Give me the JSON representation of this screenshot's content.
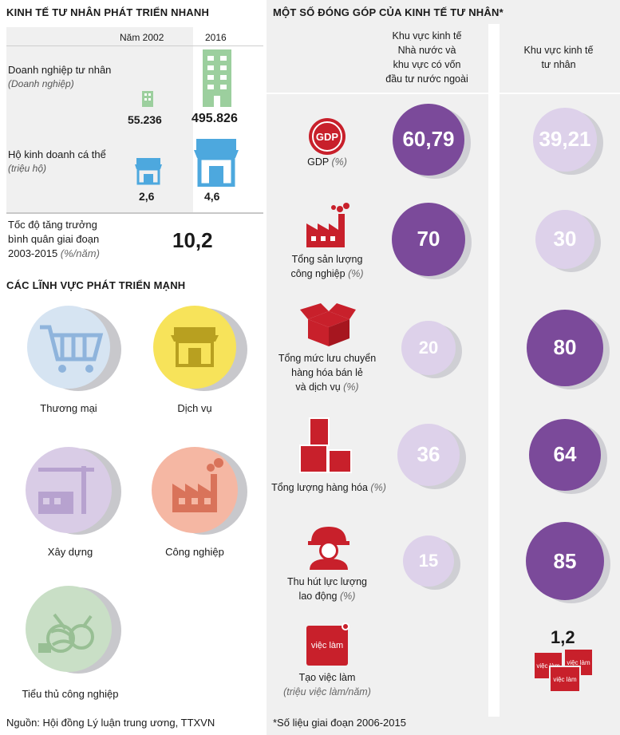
{
  "left": {
    "title": "KINH TẾ TƯ NHÂN PHÁT TRIỂN NHANH",
    "col_year1": "Năm 2002",
    "col_year2": "2016",
    "row1": {
      "label": "Doanh nghiệp tư nhân",
      "unit": "(Doanh nghiệp)",
      "v2002": "55.236",
      "v2016": "495.826"
    },
    "row2": {
      "label": "Hộ kinh doanh cá thể",
      "unit": "(triệu hộ)",
      "v2002": "2,6",
      "v2016": "4,6"
    },
    "growth": {
      "line1": "Tốc độ tăng trưởng",
      "line2": "bình quân giai đoạn",
      "line3": "2003-2015",
      "unit": "(%/năm)",
      "value": "10,2"
    },
    "sectors_title": "CÁC LĨNH VỰC PHÁT TRIỂN MẠNH",
    "sectors": [
      {
        "label": "Thương mại",
        "icon": "cart-icon",
        "color": "#d6e4f2"
      },
      {
        "label": "Dịch vụ",
        "icon": "storefront-icon",
        "color": "#f7e35a"
      },
      {
        "label": "Xây dựng",
        "icon": "crane-icon",
        "color": "#d9cce6"
      },
      {
        "label": "Công nghiệp",
        "icon": "factory-icon",
        "color": "#f5b7a3"
      },
      {
        "label": "Tiểu thủ công nghiệp",
        "icon": "yarn-icon",
        "color": "#c9dfc6"
      }
    ],
    "source": "Nguồn: Hội đồng Lý luận trung ương, TTXVN"
  },
  "right": {
    "title": "MỘT SỐ ĐÓNG GÓP CỦA KINH TẾ TƯ NHÂN*",
    "col1": {
      "line1": "Khu vực kinh tế",
      "line2": "Nhà nước và",
      "line3": "khu vực có vốn",
      "line4": "đầu tư nước ngoài"
    },
    "col2": {
      "line1": "Khu vực kinh tế",
      "line2": "tư nhân"
    },
    "gdp_badge": "GDP",
    "rows": [
      {
        "l1": "GDP",
        "unit": "(%)",
        "state": "60,79",
        "private": "39,21",
        "state_pct": 60.79,
        "private_pct": 39.21
      },
      {
        "l1": "Tổng sản lượng",
        "l2": "công nghiệp",
        "unit": "(%)",
        "state": "70",
        "private": "30",
        "state_pct": 70,
        "private_pct": 30
      },
      {
        "l1": "Tổng mức lưu chuyển",
        "l2": "hàng hóa bán lẻ",
        "l3": "và dịch vụ",
        "unit": "(%)",
        "state": "20",
        "private": "80",
        "state_pct": 20,
        "private_pct": 80
      },
      {
        "l1": "Tổng lượng hàng hóa",
        "unit": "(%)",
        "state": "36",
        "private": "64",
        "state_pct": 36,
        "private_pct": 64
      },
      {
        "l1": "Thu hút lực lượng",
        "l2": "lao động",
        "unit": "(%)",
        "state": "15",
        "private": "85",
        "state_pct": 15,
        "private_pct": 85
      }
    ],
    "jobs": {
      "label": "Tạo việc làm",
      "unit": "(triệu việc làm/năm)",
      "value": "1,2",
      "badge": "việc làm"
    },
    "footnote": "*Số liệu giai đoạn 2006-2015"
  },
  "colors": {
    "purple": "#7b4a9a",
    "light_purple": "#ddd1ea",
    "red": "#c8202b",
    "green": "#9ccf9e",
    "blue": "#4da8de",
    "panel": "#f0f0f0"
  }
}
